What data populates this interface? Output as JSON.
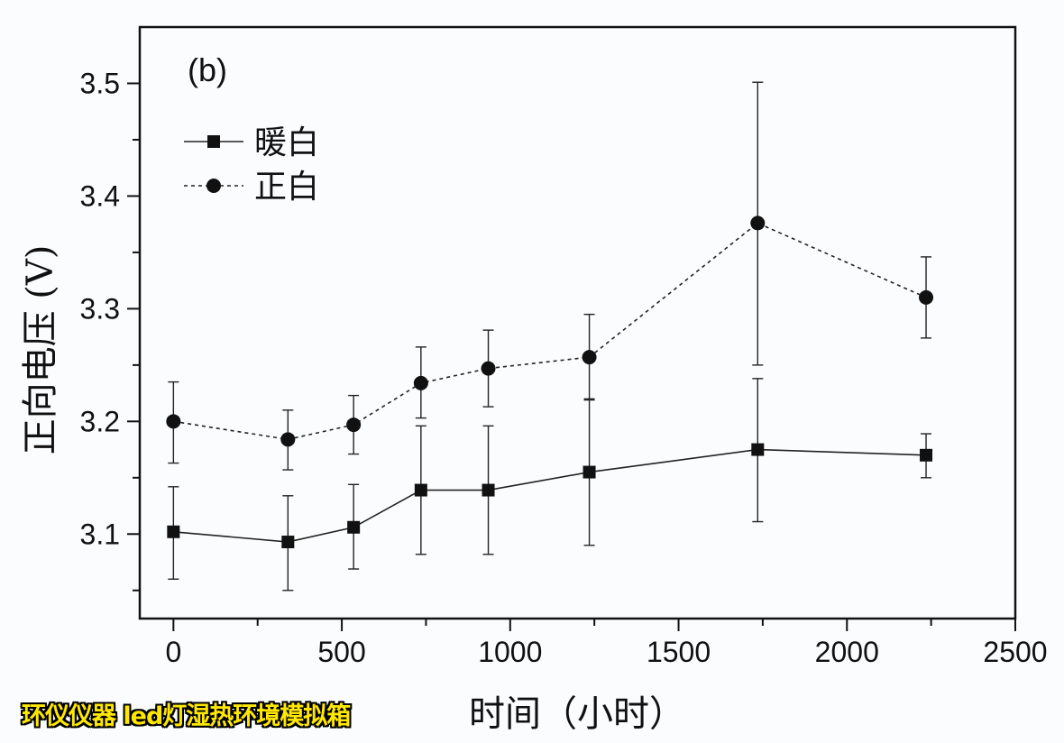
{
  "chart_data": {
    "type": "line",
    "panel_label": "(b)",
    "xlabel": "时间（小时）",
    "ylabel": "正向电压 (V)",
    "xlim": [
      -100,
      2500
    ],
    "ylim": [
      3.025,
      3.55
    ],
    "xticks": [
      0,
      500,
      1000,
      1500,
      2000,
      2500
    ],
    "yticks": [
      3.1,
      3.2,
      3.3,
      3.4,
      3.5
    ],
    "legend_position": "top-left",
    "grid": false,
    "series": [
      {
        "name": "暖白",
        "marker": "square",
        "line": "solid",
        "x": [
          0,
          340,
          535,
          735,
          935,
          1235,
          1735,
          2235
        ],
        "y": [
          3.102,
          3.093,
          3.106,
          3.139,
          3.139,
          3.155,
          3.175,
          3.17
        ],
        "error": [
          [
            3.06,
            3.142
          ],
          [
            3.05,
            3.134
          ],
          [
            3.069,
            3.144
          ],
          [
            3.082,
            3.196
          ],
          [
            3.082,
            3.196
          ],
          [
            3.09,
            3.219
          ],
          [
            3.111,
            3.238
          ],
          [
            3.15,
            3.189
          ]
        ]
      },
      {
        "name": "正白",
        "marker": "circle",
        "line": "dashed",
        "x": [
          0,
          340,
          535,
          735,
          935,
          1235,
          1735,
          2235
        ],
        "y": [
          3.2,
          3.184,
          3.197,
          3.234,
          3.247,
          3.257,
          3.376,
          3.31
        ],
        "error": [
          [
            3.163,
            3.235
          ],
          [
            3.157,
            3.21
          ],
          [
            3.171,
            3.223
          ],
          [
            3.203,
            3.266
          ],
          [
            3.213,
            3.281
          ],
          [
            3.22,
            3.295
          ],
          [
            3.25,
            3.501
          ],
          [
            3.274,
            3.346
          ]
        ]
      }
    ]
  },
  "watermark": "环仪仪器 led灯湿热环境模拟箱"
}
